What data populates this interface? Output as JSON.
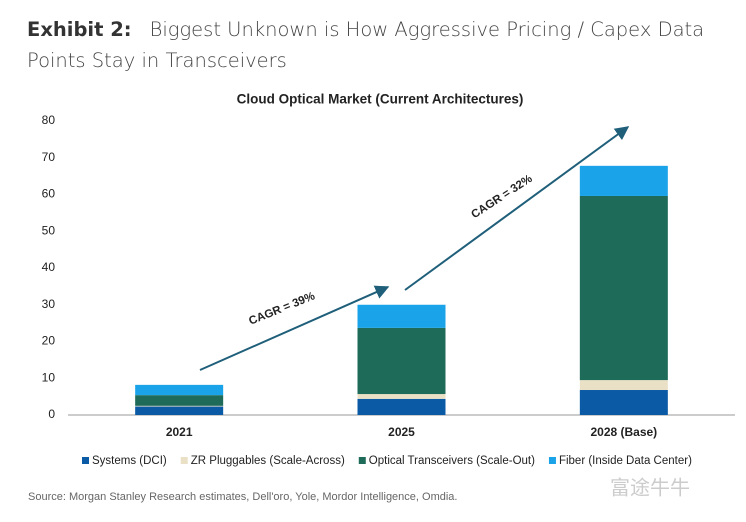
{
  "header": {
    "exhibit": "Exhibit 2:",
    "title": "Biggest Unknown is How Aggressive Pricing / Capex Data Points Stay in Transceivers"
  },
  "chart_data": {
    "type": "bar",
    "stacked": true,
    "title": "Cloud Optical Market (Current Architectures)",
    "categories": [
      "2021",
      "2025",
      "2028 (Base)"
    ],
    "series": [
      {
        "name": "Systems (DCI)",
        "color": "#0b5aa6",
        "values": [
          2.3,
          4.4,
          6.8
        ]
      },
      {
        "name": "ZR Pluggables  (Scale-Across)",
        "color": "#e9e0c6",
        "values": [
          0.2,
          1.3,
          2.7
        ]
      },
      {
        "name": "Optical Transceivers (Scale-Out)",
        "color": "#1f6b59",
        "values": [
          2.9,
          18,
          50.1
        ]
      },
      {
        "name": "Fiber (Inside Data Center)",
        "color": "#1aa3e8",
        "values": [
          2.8,
          6.3,
          8.2
        ]
      }
    ],
    "ylim": [
      0,
      80
    ],
    "yticks": [
      0,
      10,
      20,
      30,
      40,
      50,
      60,
      70,
      80
    ],
    "annotations": [
      "CAGR = 39%",
      "CAGR = 32%"
    ]
  },
  "source": "Source: Morgan Stanley Research estimates, Dell'oro, Yole, Mordor Intelligence, Omdia.",
  "watermark": "富途牛牛"
}
